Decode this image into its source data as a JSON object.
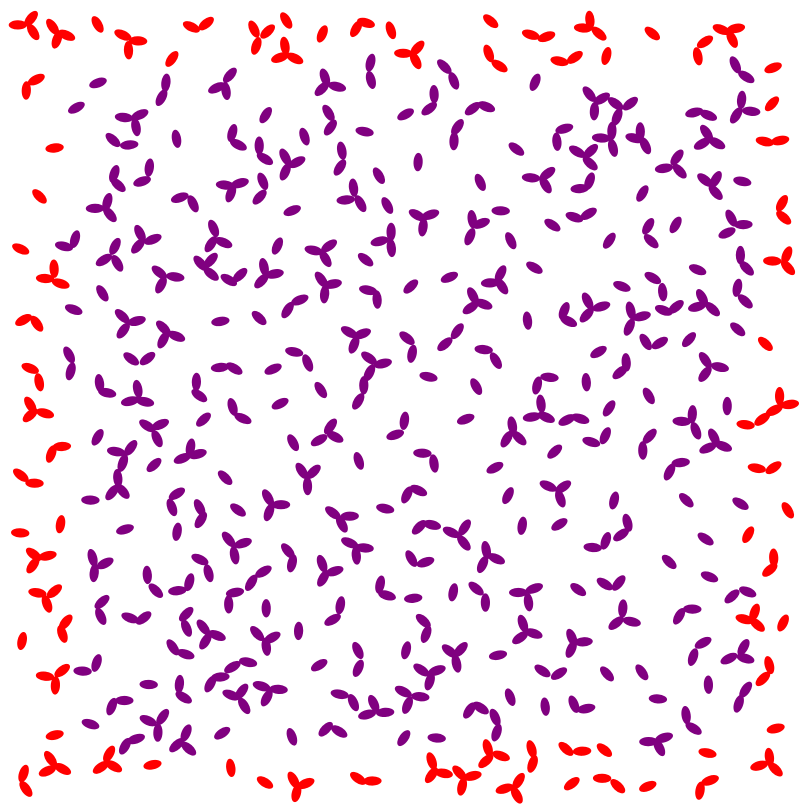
{
  "scene": {
    "background": "#ffffff",
    "inner_color": "#800080",
    "border_color": "#ff0000",
    "shape": "ellipse",
    "description_tag": "particle-field"
  }
}
